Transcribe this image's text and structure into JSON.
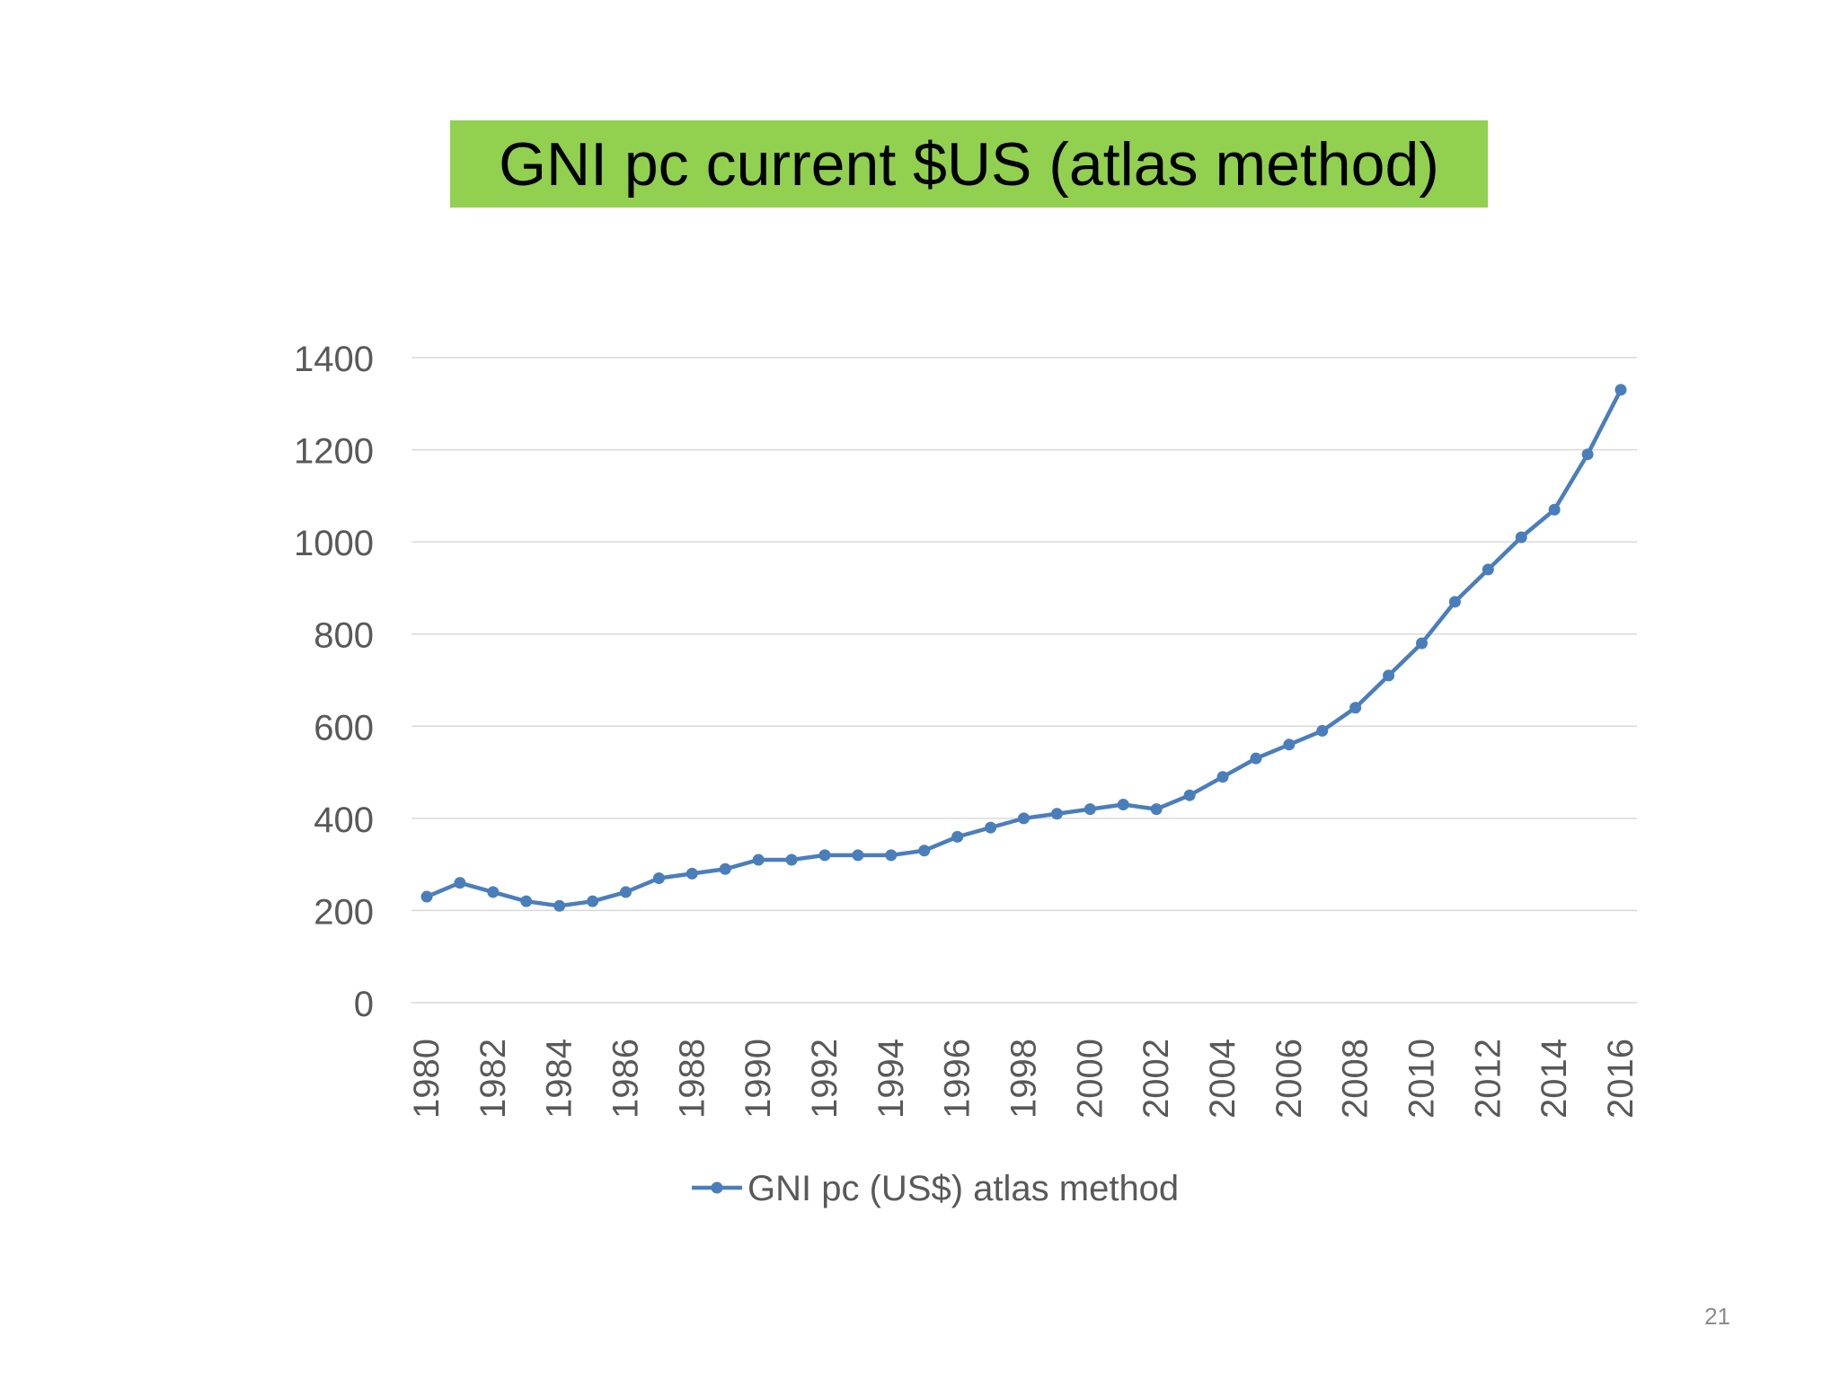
{
  "slide": {
    "title": "GNI pc current $US (atlas method)",
    "page_number": "21",
    "title_bg": "#92d050"
  },
  "chart_data": {
    "type": "line",
    "title": "",
    "xlabel": "",
    "ylabel": "",
    "ylim": [
      0,
      1400
    ],
    "yticks": [
      0,
      200,
      400,
      600,
      800,
      1000,
      1200,
      1400
    ],
    "xtick_labels": [
      "1980",
      "1982",
      "1984",
      "1986",
      "1988",
      "1990",
      "1992",
      "1994",
      "1996",
      "1998",
      "2000",
      "2002",
      "2004",
      "2006",
      "2008",
      "2010",
      "2012",
      "2014",
      "2016"
    ],
    "x": [
      1980,
      1981,
      1982,
      1983,
      1984,
      1985,
      1986,
      1987,
      1988,
      1989,
      1990,
      1991,
      1992,
      1993,
      1994,
      1995,
      1996,
      1997,
      1998,
      1999,
      2000,
      2001,
      2002,
      2003,
      2004,
      2005,
      2006,
      2007,
      2008,
      2009,
      2010,
      2011,
      2012,
      2013,
      2014,
      2015,
      2016
    ],
    "series": [
      {
        "name": "GNI pc (US$) atlas method",
        "color": "#4a7ebb",
        "values": [
          230,
          260,
          240,
          220,
          210,
          220,
          240,
          270,
          280,
          290,
          310,
          310,
          320,
          320,
          320,
          330,
          360,
          380,
          400,
          410,
          420,
          430,
          420,
          450,
          490,
          530,
          560,
          590,
          640,
          710,
          780,
          870,
          940,
          1010,
          1070,
          1190,
          1330
        ]
      }
    ],
    "grid": true,
    "legend": "bottom"
  }
}
